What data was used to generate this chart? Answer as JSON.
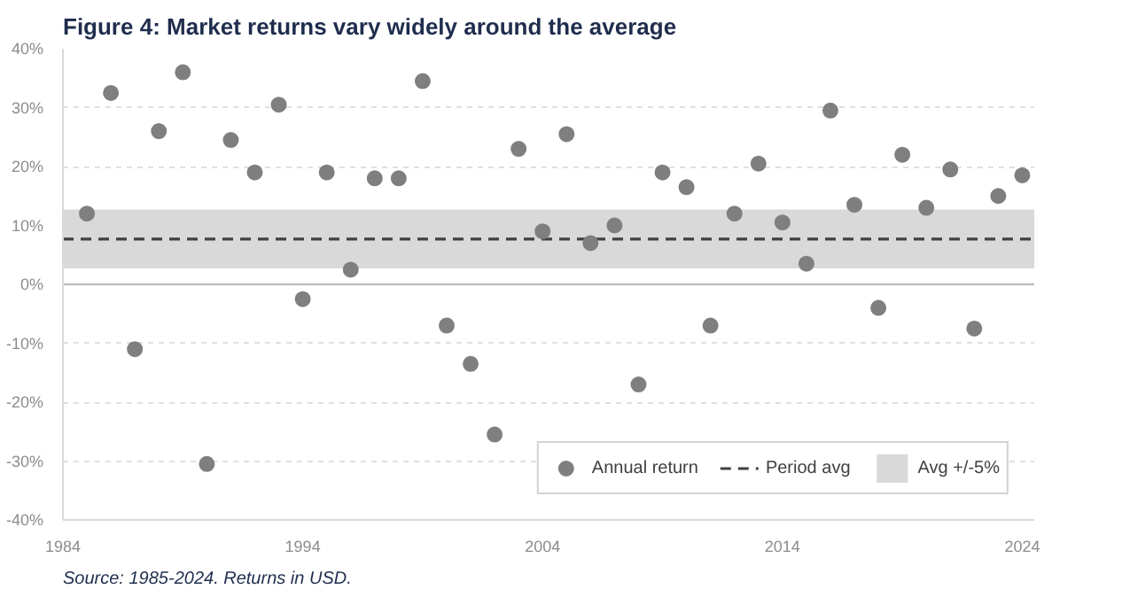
{
  "chart_data": {
    "type": "scatter",
    "title": "Figure 4: Market returns vary widely around the average",
    "x": [
      1985,
      1986,
      1987,
      1988,
      1989,
      1990,
      1991,
      1992,
      1993,
      1994,
      1995,
      1996,
      1997,
      1998,
      1999,
      2000,
      2001,
      2002,
      2003,
      2004,
      2005,
      2006,
      2007,
      2008,
      2009,
      2010,
      2011,
      2012,
      2013,
      2014,
      2015,
      2016,
      2017,
      2018,
      2019,
      2020,
      2021,
      2022,
      2023,
      2024
    ],
    "series": [
      {
        "name": "Annual return",
        "color": "#7f7f7f",
        "values": [
          12,
          32.5,
          -11,
          26,
          36,
          -30.5,
          24.5,
          19,
          30.5,
          -2.5,
          19,
          2.5,
          18,
          18,
          34.5,
          -7,
          -13.5,
          -25.5,
          23,
          9,
          25.5,
          7,
          10,
          -17,
          19,
          16.5,
          -7,
          12,
          20.5,
          10.5,
          3.5,
          29.5,
          13.5,
          -4,
          22,
          13,
          19.5,
          -7.5,
          15,
          18.5
        ]
      }
    ],
    "marker": "circle",
    "ref_lines": [
      {
        "axis": "y",
        "value": 7.7,
        "label": "Period avg",
        "color": "#404040",
        "line_style": "dashed"
      },
      {
        "axis": "y",
        "value": 0,
        "label": null,
        "color": "#bfbfbf",
        "line_style": "solid"
      }
    ],
    "bands": [
      {
        "axis": "y",
        "from": 2.7,
        "to": 12.7,
        "label": "Avg +/-5%",
        "color": "#d9d9d9"
      }
    ],
    "xlim": [
      1984,
      2024.5
    ],
    "xticks": [
      1984,
      1994,
      2004,
      2014,
      2024
    ],
    "ylim": [
      -40,
      40
    ],
    "yticks": [
      {
        "value": -40,
        "label": "-40%"
      },
      {
        "value": -30,
        "label": "-30%"
      },
      {
        "value": -20,
        "label": "-20%"
      },
      {
        "value": -10,
        "label": "-10%"
      },
      {
        "value": 0,
        "label": "0%"
      },
      {
        "value": 10,
        "label": "10%"
      },
      {
        "value": 20,
        "label": "20%"
      },
      {
        "value": 30,
        "label": "30%"
      },
      {
        "value": 40,
        "label": "40%"
      }
    ],
    "grid": "y",
    "legend": "bottom right",
    "annotations": [
      "Source: 1985-2024. Returns in USD."
    ]
  }
}
